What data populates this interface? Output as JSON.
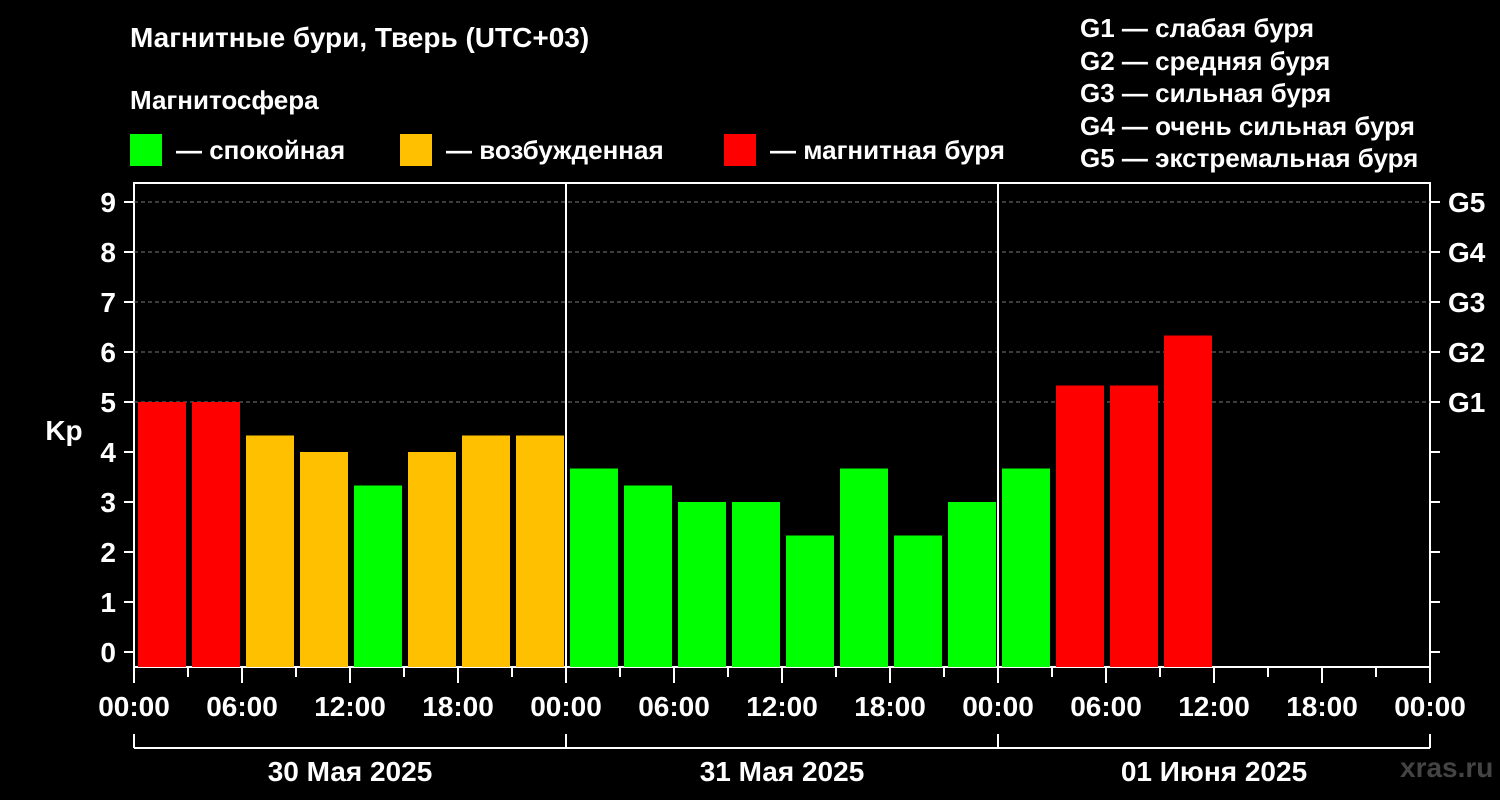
{
  "chart_data": {
    "type": "bar",
    "title": "Магнитные бури, Тверь (UTC+03)",
    "subtitle": "Магнитосфера",
    "ylabel": "Kp",
    "ylim": [
      0,
      9
    ],
    "yticks": [
      "0",
      "1",
      "2",
      "3",
      "4",
      "5",
      "6",
      "7",
      "8",
      "9"
    ],
    "right_ticks": [
      {
        "kp": 5,
        "label": "G1"
      },
      {
        "kp": 6,
        "label": "G2"
      },
      {
        "kp": 7,
        "label": "G3"
      },
      {
        "kp": 8,
        "label": "G4"
      },
      {
        "kp": 9,
        "label": "G5"
      }
    ],
    "xtick_labels": [
      "00:00",
      "06:00",
      "12:00",
      "18:00",
      "00:00",
      "06:00",
      "12:00",
      "18:00",
      "00:00",
      "06:00",
      "12:00",
      "18:00",
      "00:00"
    ],
    "days": [
      "30 Мая 2025",
      "31 Мая 2025",
      "01 Июня 2025"
    ],
    "slots_per_day": 8,
    "values": [
      5.0,
      5.0,
      4.33,
      4.0,
      3.33,
      4.0,
      4.33,
      4.33,
      3.67,
      3.33,
      3.0,
      3.0,
      2.33,
      3.67,
      2.33,
      3.0,
      3.67,
      5.33,
      5.33,
      6.33
    ],
    "colors": {
      "quiet": "#00ff00",
      "excited": "#ffc000",
      "storm": "#ff0000"
    },
    "grid": true,
    "legend_position": "top"
  },
  "legend": {
    "quiet": "— спокойная",
    "excited": "— возбужденная",
    "storm": "— магнитная буря"
  },
  "g_legend": [
    "G1 — слабая буря",
    "G2 — средняя буря",
    "G3 — сильная буря",
    "G4 — очень сильная буря",
    "G5 — экстремальная буря"
  ],
  "watermark": "xras.ru"
}
